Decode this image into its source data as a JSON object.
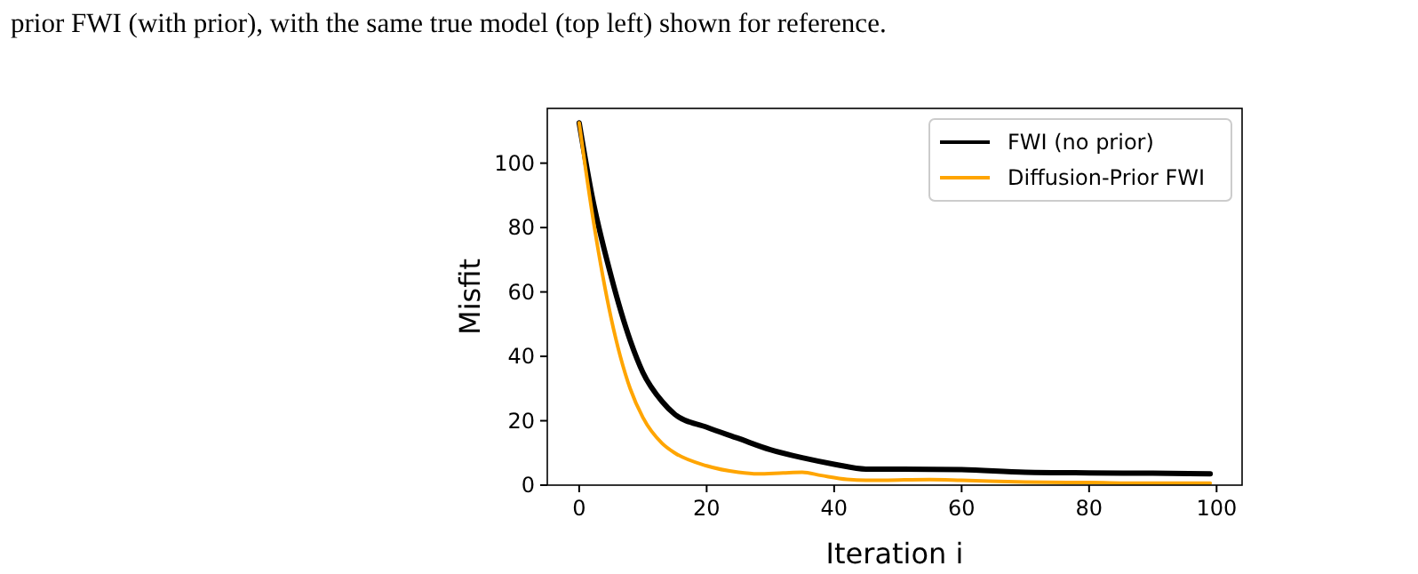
{
  "chart_data": {
    "type": "line",
    "xlabel": "Iteration i",
    "ylabel": "Misfit",
    "xlim": [
      -5,
      104
    ],
    "ylim": [
      0,
      117
    ],
    "xticks": [
      0,
      20,
      40,
      60,
      80,
      100
    ],
    "yticks": [
      0,
      20,
      40,
      60,
      80,
      100
    ],
    "legend": "top right",
    "line_style": "solid",
    "annotations": [
      "prior FWI (with prior), with the same true model (top left) shown for reference."
    ],
    "series": [
      {
        "name": "FWI (no prior)",
        "color": "#000000",
        "x": [
          0,
          2,
          5,
          8,
          10,
          13,
          15,
          20,
          25,
          30,
          35,
          40,
          45,
          50,
          60,
          70,
          80,
          90,
          99
        ],
        "values": [
          112.5,
          90,
          65,
          45,
          35,
          26,
          22,
          18,
          14.5,
          11,
          8.5,
          6.5,
          5,
          5,
          4.8,
          4,
          3.8,
          3.7,
          3.5
        ]
      },
      {
        "name": "Diffusion-Prior FWI",
        "color": "#ffa500",
        "x": [
          0,
          2,
          5,
          8,
          10,
          13,
          15,
          20,
          25,
          28,
          32,
          35,
          38,
          42,
          45,
          55,
          60,
          70,
          80,
          90,
          99
        ],
        "values": [
          112.5,
          85,
          52,
          30,
          21,
          13,
          10,
          6,
          4,
          3.5,
          3.8,
          4,
          3,
          1.8,
          1.5,
          1.7,
          1.5,
          1,
          0.8,
          0.6,
          0.6
        ]
      }
    ]
  }
}
